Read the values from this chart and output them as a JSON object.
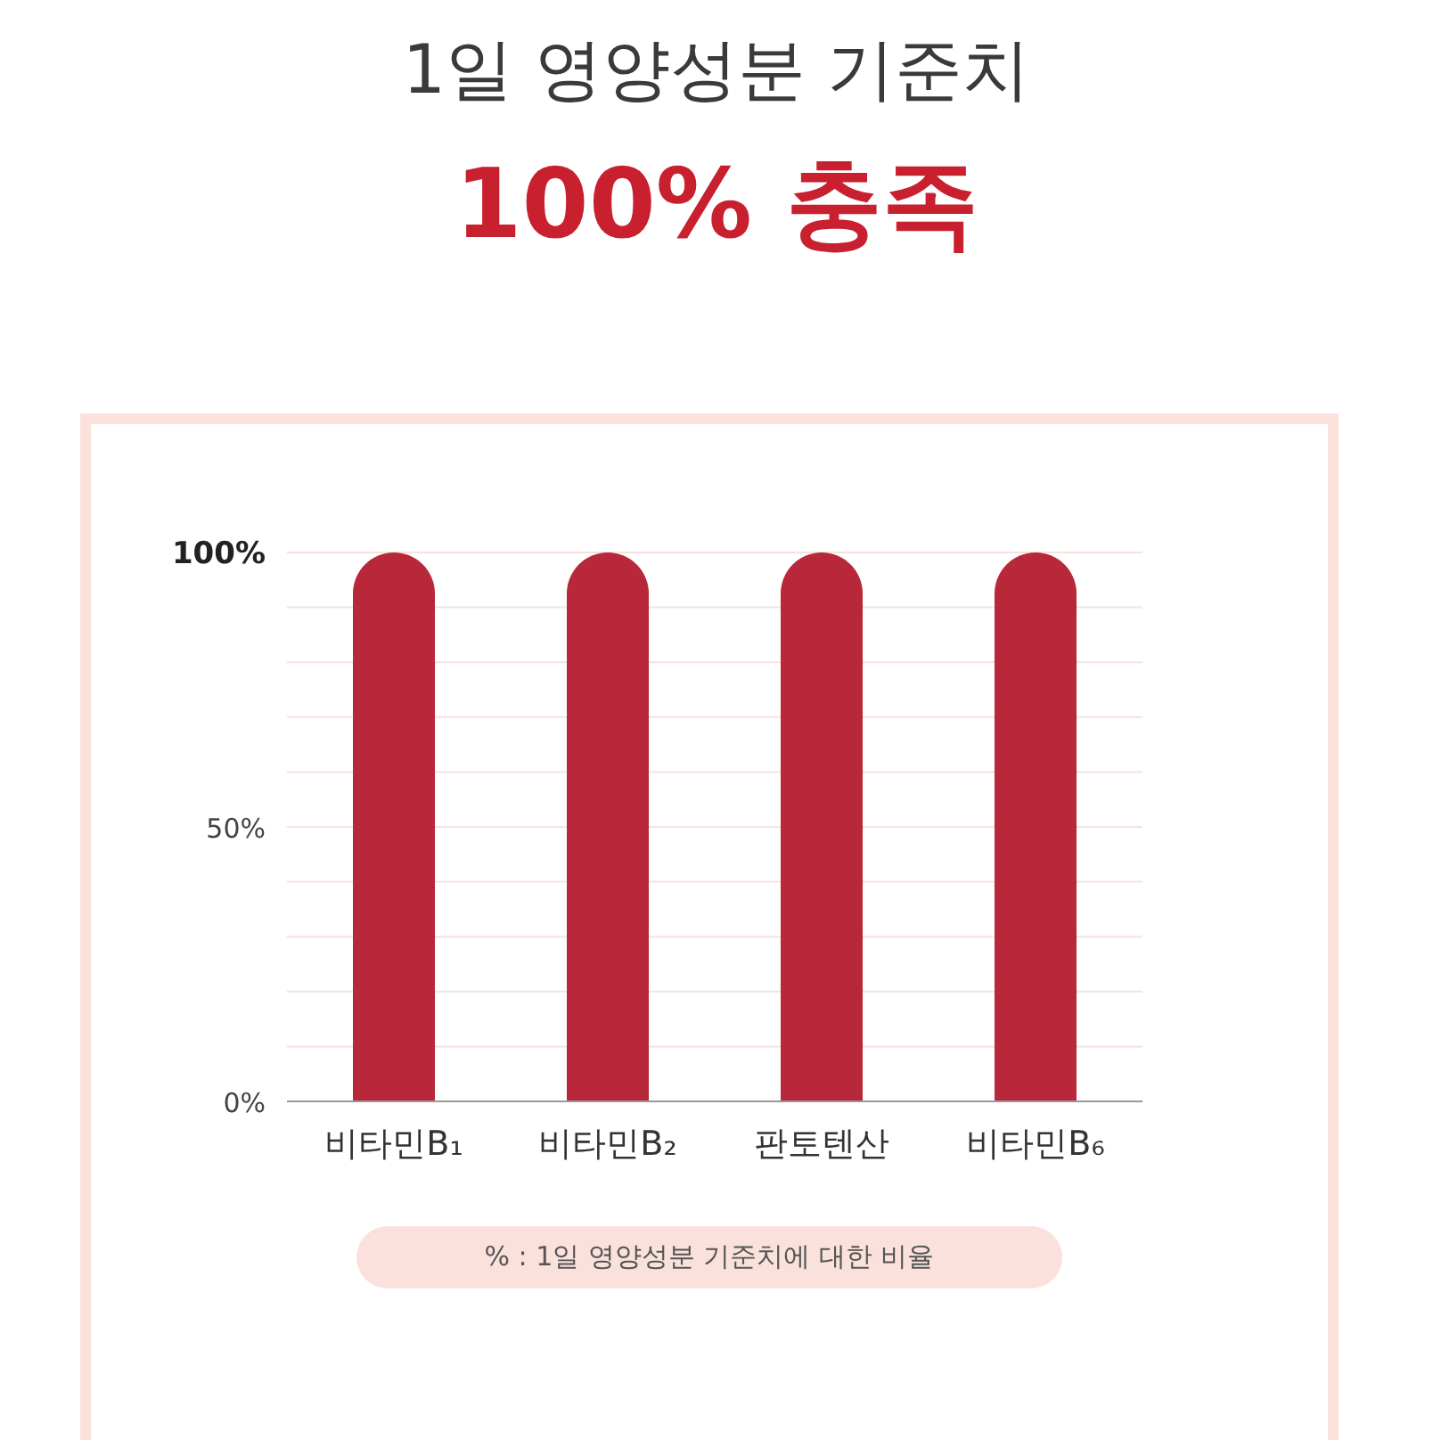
{
  "chart_data": {
    "type": "bar",
    "title": "1일 영양성분 기준치",
    "subtitle": "100% 충족",
    "categories": [
      "비타민B₁",
      "비타민B₂",
      "판토텐산",
      "비타민B₆"
    ],
    "values": [
      100,
      100,
      100,
      100
    ],
    "color": "#b8283a",
    "ylim": [
      0,
      100
    ],
    "yticks": [
      {
        "value": 0,
        "label": "0%"
      },
      {
        "value": 10,
        "label": null
      },
      {
        "value": 20,
        "label": null
      },
      {
        "value": 30,
        "label": null
      },
      {
        "value": 40,
        "label": null
      },
      {
        "value": 50,
        "label": "50%"
      },
      {
        "value": 60,
        "label": null
      },
      {
        "value": 70,
        "label": null
      },
      {
        "value": 80,
        "label": null
      },
      {
        "value": 90,
        "label": null
      },
      {
        "value": 100,
        "label": "100%"
      }
    ],
    "grid": "y",
    "annotations": [
      "% : 1일 영양성분 기준치에 대한 비율"
    ]
  }
}
